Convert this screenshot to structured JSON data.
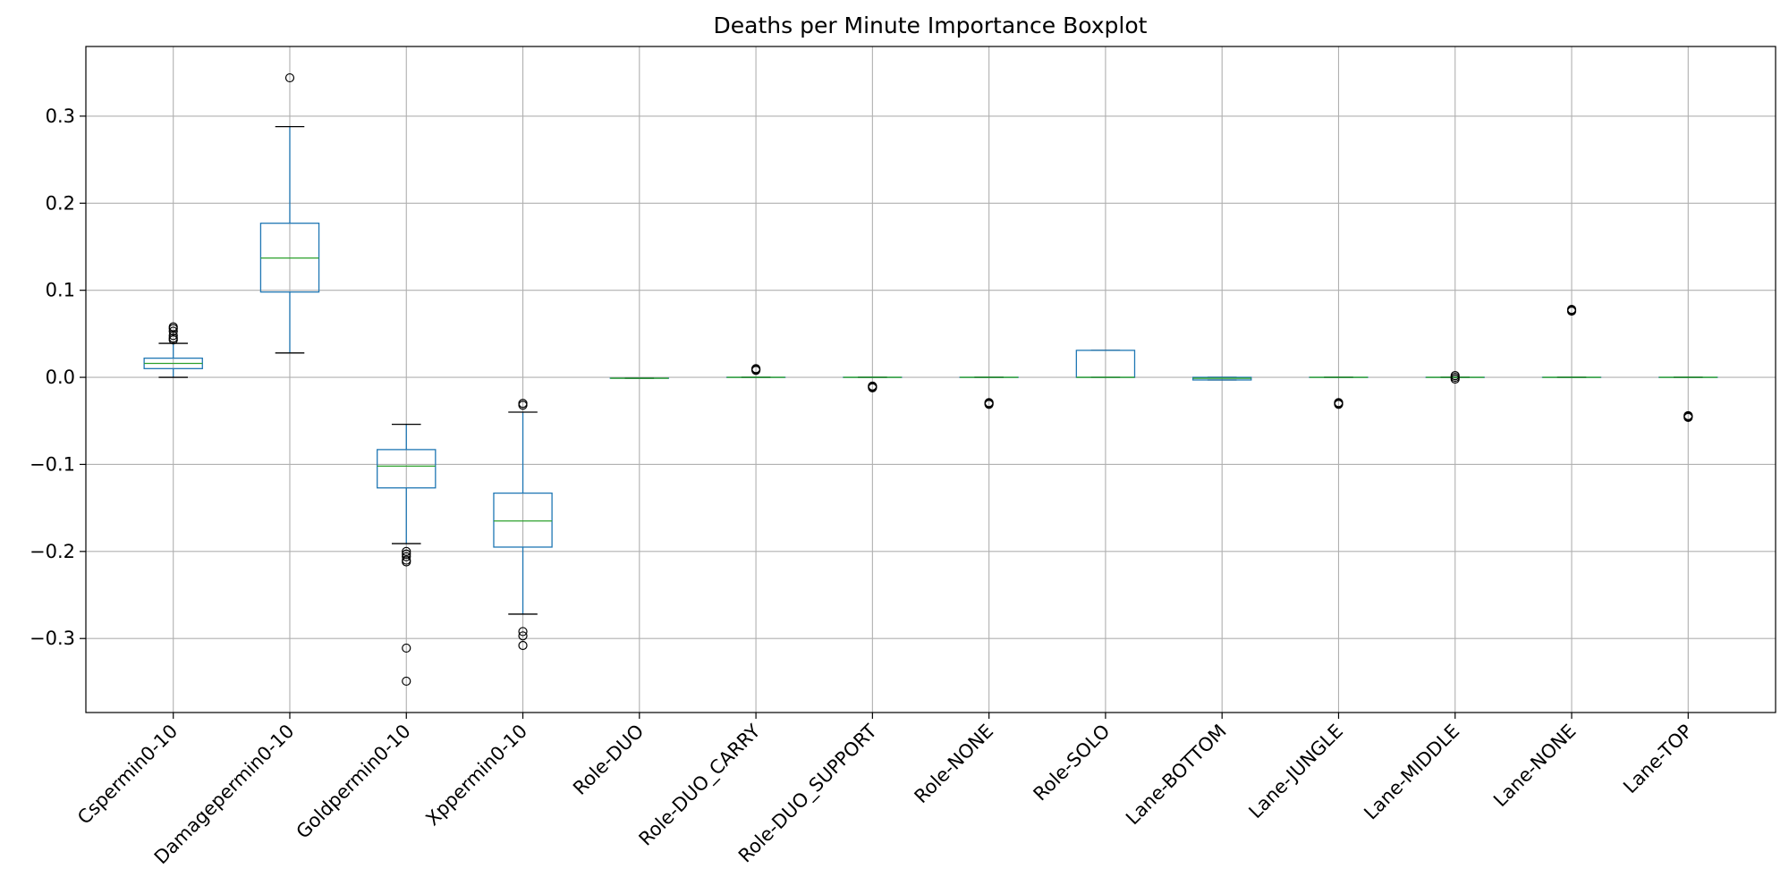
{
  "chart_data": {
    "type": "boxplot",
    "title": "Deaths per Minute Importance Boxplot",
    "xlabel": "",
    "ylabel": "",
    "ylim": [
      -0.385,
      0.38
    ],
    "yticks": [
      -0.3,
      -0.2,
      -0.1,
      0.0,
      0.1,
      0.2,
      0.3
    ],
    "ytick_labels": [
      "−0.3",
      "−0.2",
      "−0.1",
      "0.0",
      "0.1",
      "0.2",
      "0.3"
    ],
    "grid": true,
    "colors": {
      "box": "#1f77b4",
      "median": "#2ca02c",
      "whisker_cap": "#000000",
      "grid": "#b0b0b0",
      "flier": "#000000"
    },
    "categories": [
      "Cspermin0-10",
      "Damagepermin0-10",
      "Goldpermin0-10",
      "Xppermin0-10",
      "Role-DUO",
      "Role-DUO_CARRY",
      "Role-DUO_SUPPORT",
      "Role-NONE",
      "Role-SOLO",
      "Lane-BOTTOM",
      "Lane-JUNGLE",
      "Lane-MIDDLE",
      "Lane-NONE",
      "Lane-TOP"
    ],
    "boxes": [
      {
        "whislo": 0.0,
        "q1": 0.01,
        "med": 0.016,
        "q3": 0.022,
        "whishi": 0.039,
        "fliers": [
          0.043,
          0.045,
          0.048,
          0.053,
          0.056,
          0.058
        ]
      },
      {
        "whislo": 0.028,
        "q1": 0.098,
        "med": 0.137,
        "q3": 0.177,
        "whishi": 0.288,
        "fliers": [
          0.344
        ]
      },
      {
        "whislo": -0.191,
        "q1": -0.127,
        "med": -0.102,
        "q3": -0.083,
        "whishi": -0.054,
        "fliers": [
          -0.2,
          -0.203,
          -0.206,
          -0.21,
          -0.212,
          -0.311,
          -0.349
        ]
      },
      {
        "whislo": -0.272,
        "q1": -0.195,
        "med": -0.165,
        "q3": -0.133,
        "whishi": -0.04,
        "fliers": [
          -0.03,
          -0.032,
          -0.292,
          -0.297,
          -0.308
        ]
      },
      {
        "whislo": -0.001,
        "q1": -0.001,
        "med": -0.001,
        "q3": -0.001,
        "whishi": -0.001,
        "fliers": []
      },
      {
        "whislo": 0.0,
        "q1": 0.0,
        "med": 0.0,
        "q3": 0.0,
        "whishi": 0.0,
        "fliers": [
          0.008,
          0.009,
          0.01
        ]
      },
      {
        "whislo": 0.0,
        "q1": 0.0,
        "med": 0.0,
        "q3": 0.0,
        "whishi": 0.0,
        "fliers": [
          -0.01,
          -0.011,
          -0.012
        ]
      },
      {
        "whislo": 0.0,
        "q1": 0.0,
        "med": 0.0,
        "q3": 0.0,
        "whishi": 0.0,
        "fliers": [
          -0.029,
          -0.03,
          -0.031
        ]
      },
      {
        "whislo": 0.0,
        "q1": 0.0,
        "med": 0.0,
        "q3": 0.031,
        "whishi": 0.031,
        "fliers": []
      },
      {
        "whislo": -0.003,
        "q1": -0.003,
        "med": -0.001,
        "q3": 0.0,
        "whishi": 0.0,
        "fliers": []
      },
      {
        "whislo": 0.0,
        "q1": 0.0,
        "med": 0.0,
        "q3": 0.0,
        "whishi": 0.0,
        "fliers": [
          -0.029,
          -0.03,
          -0.031
        ]
      },
      {
        "whislo": 0.0,
        "q1": 0.0,
        "med": 0.0,
        "q3": 0.0,
        "whishi": 0.0,
        "fliers": [
          -0.002,
          0.0,
          0.002
        ]
      },
      {
        "whislo": 0.0,
        "q1": 0.0,
        "med": 0.0,
        "q3": 0.0,
        "whishi": 0.0,
        "fliers": [
          0.076,
          0.077,
          0.078
        ]
      },
      {
        "whislo": 0.0,
        "q1": 0.0,
        "med": 0.0,
        "q3": 0.0,
        "whishi": 0.0,
        "fliers": [
          -0.044,
          -0.045,
          -0.046
        ]
      }
    ]
  }
}
